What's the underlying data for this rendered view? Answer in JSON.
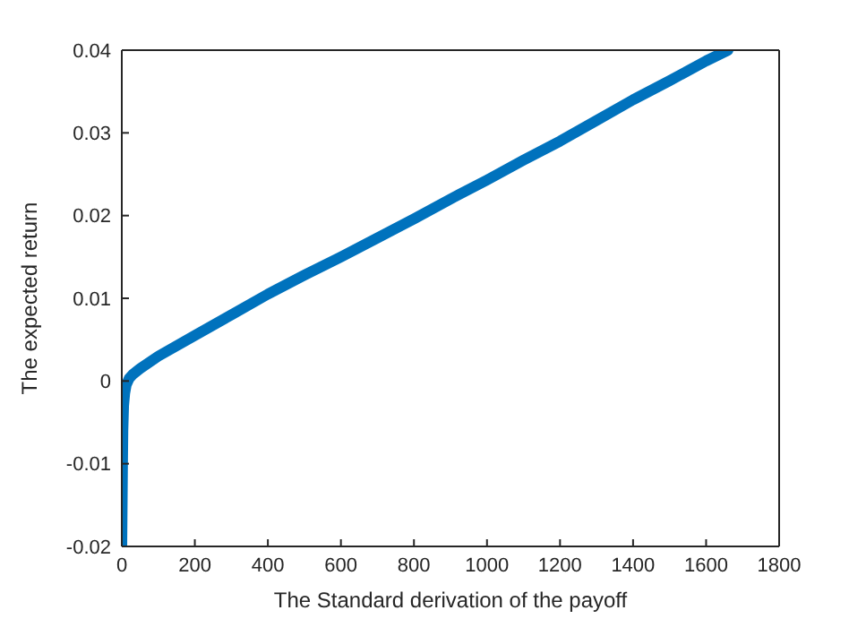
{
  "chart_data": {
    "type": "line",
    "xlabel": "The Standard derivation of the payoff",
    "ylabel": "The expected return",
    "series": [
      {
        "color": "#0072bd",
        "x": [
          0,
          1,
          2,
          3,
          5,
          8,
          12,
          20,
          30,
          50,
          100,
          200,
          300,
          400,
          500,
          600,
          700,
          800,
          900,
          1000,
          1100,
          1200,
          1300,
          1400,
          1500,
          1600,
          1660
        ],
        "values": [
          -0.02,
          -0.015,
          -0.01,
          -0.006,
          -0.003,
          -0.0015,
          -0.0005,
          0.0003,
          0.0008,
          0.0015,
          0.003,
          0.0055,
          0.008,
          0.0105,
          0.0128,
          0.015,
          0.0173,
          0.0196,
          0.022,
          0.0243,
          0.0267,
          0.029,
          0.0315,
          0.034,
          0.0363,
          0.0387,
          0.04
        ]
      }
    ],
    "xlim": [
      0,
      1800
    ],
    "xticks": [
      0,
      200,
      400,
      600,
      800,
      1000,
      1200,
      1400,
      1600,
      1800
    ],
    "ylim": [
      -0.02,
      0.04
    ],
    "yticks": [
      -0.02,
      -0.01,
      0,
      0.01,
      0.02,
      0.03,
      0.04
    ],
    "marker": "none",
    "line_style": "solid"
  }
}
